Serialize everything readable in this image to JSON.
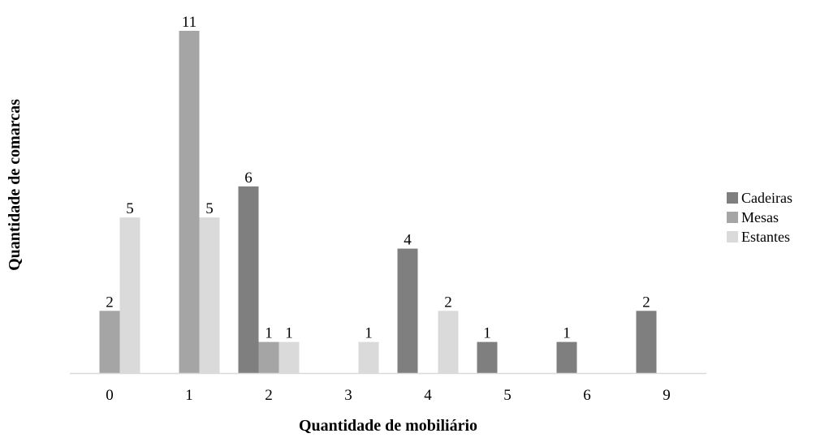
{
  "chart_data": {
    "type": "bar",
    "categories": [
      "0",
      "1",
      "2",
      "3",
      "4",
      "5",
      "6",
      "9"
    ],
    "series": [
      {
        "name": "Cadeiras",
        "color": "#7f7f7f",
        "values": [
          null,
          null,
          6,
          null,
          4,
          1,
          1,
          2
        ]
      },
      {
        "name": "Mesas",
        "color": "#a5a5a5",
        "values": [
          2,
          11,
          1,
          null,
          null,
          null,
          null,
          null
        ]
      },
      {
        "name": "Estantes",
        "color": "#dadada",
        "values": [
          5,
          5,
          1,
          1,
          2,
          null,
          null,
          null
        ]
      }
    ],
    "xlabel": "Quantidade de mobiliário",
    "ylabel": "Quantidade de comarcas",
    "ylim": [
      0,
      11
    ],
    "grid": false,
    "legend_position": "right",
    "axis_color": "#d9d9d9"
  }
}
